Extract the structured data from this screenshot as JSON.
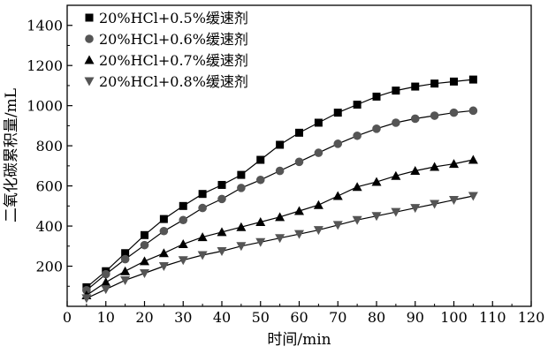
{
  "chart_data": {
    "type": "line",
    "title": "",
    "xlabel": "时间/min",
    "ylabel": "二氧化碳累积量/mL",
    "xlim": [
      0,
      120
    ],
    "ylim": [
      0,
      1500
    ],
    "x_ticks": [
      0,
      10,
      20,
      30,
      40,
      50,
      60,
      70,
      80,
      90,
      100,
      110,
      120
    ],
    "y_ticks": [
      200,
      400,
      600,
      800,
      1000,
      1200,
      1400
    ],
    "grid": false,
    "legend_position": "top-left",
    "colors": {
      "line": "#000000",
      "marker": "#000000",
      "marker_gray": "#555555"
    },
    "x": [
      5,
      10,
      15,
      20,
      25,
      30,
      35,
      40,
      45,
      50,
      55,
      60,
      65,
      70,
      75,
      80,
      85,
      90,
      95,
      100,
      105
    ],
    "series": [
      {
        "name": "20%HCl+0.5%缓速剂",
        "marker": "square",
        "values": [
          95,
          175,
          265,
          355,
          435,
          500,
          560,
          605,
          655,
          730,
          805,
          865,
          915,
          965,
          1005,
          1045,
          1075,
          1095,
          1110,
          1120,
          1130
        ]
      },
      {
        "name": "20%HCl+0.6%缓速剂",
        "marker": "circle",
        "values": [
          80,
          160,
          235,
          305,
          375,
          430,
          490,
          535,
          590,
          630,
          675,
          720,
          765,
          810,
          850,
          885,
          915,
          935,
          950,
          965,
          975
        ]
      },
      {
        "name": "20%HCl+0.7%缓速剂",
        "marker": "triangle-up",
        "values": [
          55,
          120,
          175,
          225,
          265,
          310,
          345,
          370,
          395,
          420,
          445,
          475,
          505,
          550,
          595,
          620,
          650,
          675,
          695,
          710,
          730
        ]
      },
      {
        "name": "20%HCl+0.8%缓速剂",
        "marker": "triangle-down",
        "values": [
          40,
          85,
          130,
          165,
          200,
          230,
          255,
          275,
          300,
          320,
          340,
          360,
          380,
          405,
          430,
          450,
          470,
          490,
          510,
          530,
          550
        ]
      }
    ]
  }
}
